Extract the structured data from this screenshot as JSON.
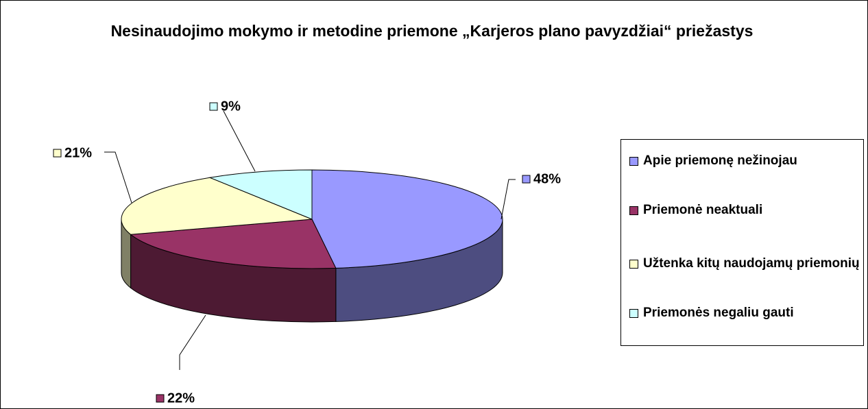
{
  "chart_data": {
    "type": "pie",
    "title": "Nesinaudojimo mokymo ir metodine priemone „Karjeros plano pavyzdžiai“ priežastys",
    "categories": [
      "Apie priemonę nežinojau",
      "Priemonė neaktuali",
      "Užtenka kitų naudojamų priemonių",
      "Priemonės negaliu gauti"
    ],
    "values": [
      48,
      22,
      21,
      9
    ],
    "value_labels": [
      "48%",
      "22%",
      "21%",
      "9%"
    ],
    "colors": [
      "#9999ff",
      "#993366",
      "#ffffcc",
      "#ccffff"
    ],
    "legend": "right"
  }
}
